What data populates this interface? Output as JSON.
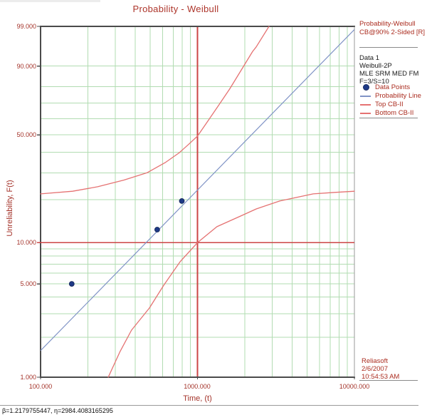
{
  "title": "Probability - Weibull",
  "legend": {
    "header_line1": "Probability-Weibull",
    "header_line2": "CB@90% 2-Sided [R]",
    "info_lines": [
      "Data 1",
      "Weibull-2P",
      "MLE SRM MED FM",
      "F=3/S=10"
    ],
    "entries": [
      {
        "label": "Data Points",
        "type": "point"
      },
      {
        "label": "Probability Line",
        "type": "line-blue"
      },
      {
        "label": "Top CB-II",
        "type": "line-red"
      },
      {
        "label": "Bottom CB-II",
        "type": "line-red"
      }
    ],
    "branding": {
      "company": "Reliasoft",
      "date": "2/6/2007",
      "time": "10:54:53 AM"
    }
  },
  "footer": {
    "parameters": "β=1.2179755447, η=2984.4083165295"
  },
  "chart_data": {
    "type": "scatter",
    "title": "Probability - Weibull",
    "xlabel": "Time, (t)",
    "ylabel": "Unreliability, F(t)",
    "x_scale": "log",
    "y_scale": "weibull-probability",
    "xlim": [
      100,
      10000
    ],
    "ylim": [
      1,
      99
    ],
    "grid": true,
    "legend_position": "right",
    "x_major_ticks": [
      100,
      1000,
      10000
    ],
    "x_tick_labels": [
      "100.000",
      "1000.000",
      "10000.000"
    ],
    "x_minor_grid": [
      200,
      300,
      400,
      500,
      600,
      700,
      800,
      900,
      2000,
      3000,
      4000,
      5000,
      6000,
      7000,
      8000,
      9000
    ],
    "y_major_ticks": [
      99,
      90,
      50,
      10,
      5,
      1
    ],
    "y_tick_labels": [
      "99.000",
      "90.000",
      "50.000",
      "10.000",
      "5.000",
      "1.000"
    ],
    "y_minor_grid": [
      90,
      80,
      70,
      60,
      50,
      40,
      30,
      20,
      10,
      9,
      8,
      7,
      6,
      5,
      4,
      3,
      2
    ],
    "points": [
      [
        158,
        5.0
      ],
      [
        554,
        12.4
      ],
      [
        795,
        19.6
      ]
    ],
    "weibull_fit": {
      "beta": 1.2179755447,
      "eta": 2984.4083165295
    },
    "reference_lines": {
      "time": 1000,
      "unreliability": 10,
      "color": "#cc4545"
    },
    "top_cb": [
      [
        100,
        21.9
      ],
      [
        160,
        22.8
      ],
      [
        231,
        24.4
      ],
      [
        340,
        27.0
      ],
      [
        479,
        30.1
      ],
      [
        622,
        34.7
      ],
      [
        766,
        39.8
      ],
      [
        880,
        44.5
      ],
      [
        1000,
        49.2
      ],
      [
        1163,
        58.5
      ],
      [
        1361,
        68.5
      ],
      [
        1600,
        78.5
      ],
      [
        1880,
        87.8
      ],
      [
        2246,
        94.9
      ],
      [
        2366,
        96.0
      ],
      [
        2857,
        99.0
      ]
    ],
    "bottom_cb": [
      [
        270,
        1.0
      ],
      [
        320,
        1.55
      ],
      [
        380,
        2.26
      ],
      [
        494,
        3.31
      ],
      [
        609,
        4.88
      ],
      [
        775,
        7.28
      ],
      [
        1000,
        10.0
      ],
      [
        1330,
        13.0
      ],
      [
        1920,
        15.6
      ],
      [
        2370,
        17.3
      ],
      [
        3340,
        19.6
      ],
      [
        5460,
        21.9
      ],
      [
        7500,
        22.4
      ],
      [
        10000,
        22.8
      ]
    ],
    "colors": {
      "grid": "#b2dcb2",
      "frame": "#4b4b4b",
      "frame_right": "#9a9a9a",
      "line": "#8194c6",
      "point": "#1e3a87",
      "point_edge": "#16295f",
      "cb": "#e57272",
      "text_red": "#a4332a"
    }
  }
}
